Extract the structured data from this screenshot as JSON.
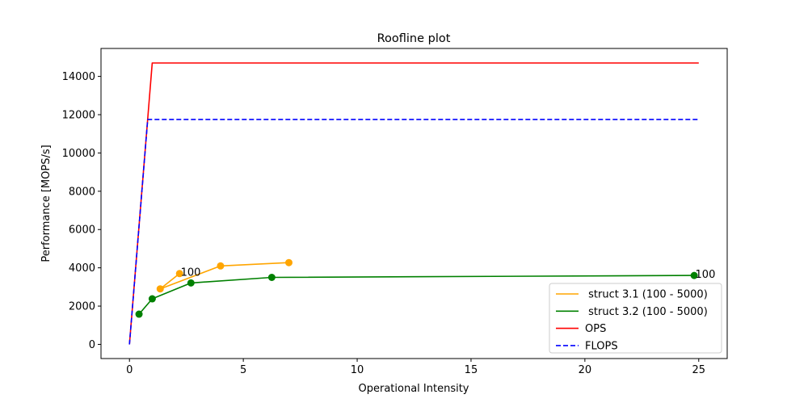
{
  "chart_data": {
    "type": "line",
    "title": "Roofline plot",
    "xlabel": "Operational Intensity",
    "ylabel": "Performance [MOPS/s]",
    "xlim": [
      -1.25,
      26.25
    ],
    "ylim": [
      -740,
      15460
    ],
    "x_ticks": [
      0,
      5,
      10,
      15,
      20,
      25
    ],
    "x_tick_labels": [
      "0",
      "5",
      "10",
      "15",
      "20",
      "25"
    ],
    "y_ticks": [
      0,
      2000,
      4000,
      6000,
      8000,
      10000,
      12000,
      14000
    ],
    "y_tick_labels": [
      "0",
      "2000",
      "4000",
      "6000",
      "8000",
      "10000",
      "12000",
      "14000"
    ],
    "grid": false,
    "legend_position": "bottom-right",
    "series": [
      {
        "name": " struct 3.1 (100 - 5000)",
        "color": "#ffa500",
        "style": "solid",
        "markers": true,
        "x": [
          2.2,
          1.35,
          4.0,
          7.0
        ],
        "y": [
          3700,
          2900,
          4100,
          4270
        ]
      },
      {
        "name": " struct 3.2 (100 - 5000)",
        "color": "#008000",
        "style": "solid",
        "markers": true,
        "x": [
          24.8,
          6.25,
          2.7,
          1.0,
          0.42
        ],
        "y": [
          3600,
          3500,
          3210,
          2380,
          1580
        ]
      },
      {
        "name": "OPS",
        "color": "#ff0000",
        "style": "solid",
        "markers": false,
        "x": [
          0,
          1.0,
          25
        ],
        "y": [
          0,
          14700,
          14700
        ]
      },
      {
        "name": "FLOPS",
        "color": "#0000ff",
        "style": "dashed",
        "markers": false,
        "x": [
          0,
          0.8,
          25
        ],
        "y": [
          0,
          11750,
          11750
        ]
      }
    ],
    "annotations": [
      {
        "text": "100",
        "x": 2.25,
        "y": 3750
      },
      {
        "text": "100",
        "x": 24.85,
        "y": 3650
      }
    ]
  }
}
